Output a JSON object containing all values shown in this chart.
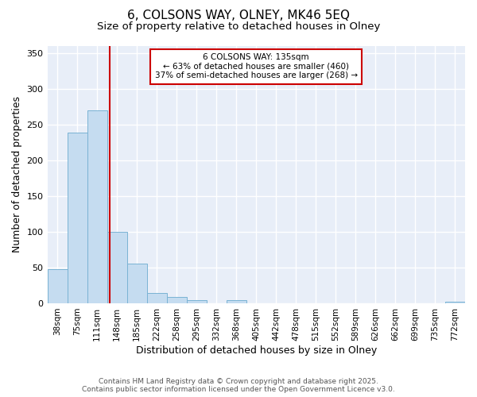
{
  "title1": "6, COLSONS WAY, OLNEY, MK46 5EQ",
  "title2": "Size of property relative to detached houses in Olney",
  "xlabel": "Distribution of detached houses by size in Olney",
  "ylabel": "Number of detached properties",
  "bar_labels": [
    "38sqm",
    "75sqm",
    "111sqm",
    "148sqm",
    "185sqm",
    "222sqm",
    "258sqm",
    "295sqm",
    "332sqm",
    "368sqm",
    "405sqm",
    "442sqm",
    "478sqm",
    "515sqm",
    "552sqm",
    "589sqm",
    "626sqm",
    "662sqm",
    "699sqm",
    "735sqm",
    "772sqm"
  ],
  "bar_values": [
    48,
    238,
    270,
    100,
    55,
    14,
    9,
    4,
    0,
    4,
    0,
    0,
    0,
    0,
    0,
    0,
    0,
    0,
    0,
    0,
    2
  ],
  "bar_color": "#c5dcf0",
  "bar_edge_color": "#7ab3d4",
  "ylim": [
    0,
    360
  ],
  "yticks": [
    0,
    50,
    100,
    150,
    200,
    250,
    300,
    350
  ],
  "vline_x": 2.65,
  "vline_color": "#cc0000",
  "annotation_title": "6 COLSONS WAY: 135sqm",
  "annotation_line1": "← 63% of detached houses are smaller (460)",
  "annotation_line2": "37% of semi-detached houses are larger (268) →",
  "annotation_box_color": "#cc0000",
  "bg_color": "#ffffff",
  "plot_bg_color": "#e8eef8",
  "grid_color": "#ffffff",
  "footer1": "Contains HM Land Registry data © Crown copyright and database right 2025.",
  "footer2": "Contains public sector information licensed under the Open Government Licence v3.0.",
  "title_fontsize": 11,
  "subtitle_fontsize": 9.5,
  "axis_fontsize": 9,
  "tick_fontsize": 7.5,
  "footer_fontsize": 6.5
}
